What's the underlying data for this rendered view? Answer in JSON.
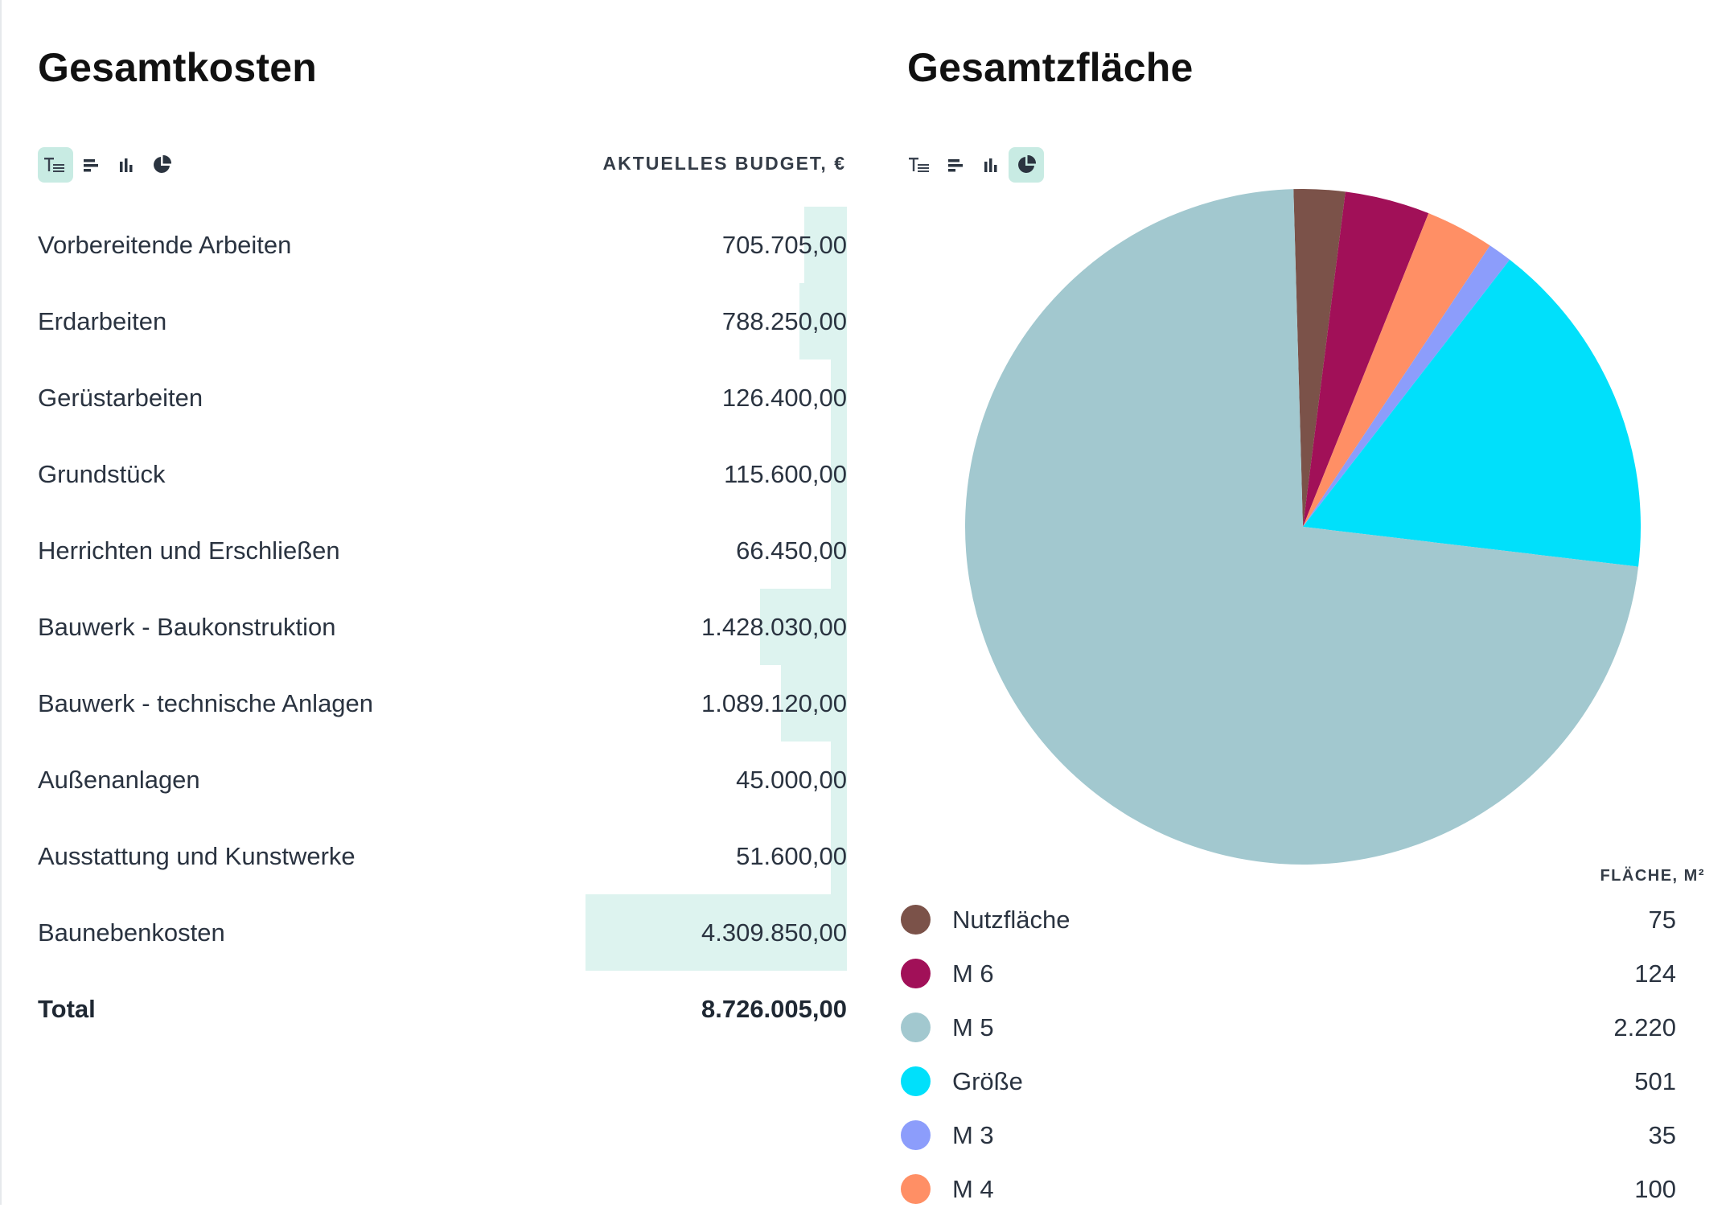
{
  "costs": {
    "title": "Gesamtkosten",
    "column_header": "AKTUELLES BUDGET, €",
    "active_view": "table",
    "views": [
      {
        "name": "table-view",
        "icon": "text-align-icon"
      },
      {
        "name": "bar-horizontal-view",
        "icon": "bar-horizontal-icon"
      },
      {
        "name": "bar-vertical-view",
        "icon": "bar-vertical-icon"
      },
      {
        "name": "pie-view",
        "icon": "pie-chart-icon"
      }
    ],
    "rows": [
      {
        "label": "Vorbereitende Arbeiten",
        "value": "705.705,00",
        "amount": 705705.0
      },
      {
        "label": "Erdarbeiten",
        "value": "788.250,00",
        "amount": 788250.0
      },
      {
        "label": "Gerüstarbeiten",
        "value": "126.400,00",
        "amount": 126400.0
      },
      {
        "label": "Grundstück",
        "value": "115.600,00",
        "amount": 115600.0
      },
      {
        "label": "Herrichten und Erschließen",
        "value": "66.450,00",
        "amount": 66450.0
      },
      {
        "label": "Bauwerk - Baukonstruktion",
        "value": "1.428.030,00",
        "amount": 1428030.0
      },
      {
        "label": "Bauwerk - technische Anlagen",
        "value": "1.089.120,00",
        "amount": 1089120.0
      },
      {
        "label": "Außenanlagen",
        "value": "45.000,00",
        "amount": 45000.0
      },
      {
        "label": "Ausstattung und Kunstwerke",
        "value": "51.600,00",
        "amount": 51600.0
      },
      {
        "label": "Baunebenkosten",
        "value": "4.309.850,00",
        "amount": 4309850.0
      }
    ],
    "total": {
      "label": "Total",
      "value": "8.726.005,00"
    },
    "bar_color": "#ddf3ef"
  },
  "area": {
    "title": "Gesamtzfläche",
    "active_view": "pie",
    "legend_header": "FLÄCHE, M²",
    "legend": [
      {
        "label": "Nutzfläche",
        "value": "75",
        "color": "#7b5249"
      },
      {
        "label": "M 6",
        "value": "124",
        "color": "#a11058"
      },
      {
        "label": "M 5",
        "value": "2.220",
        "color": "#a2c8cf"
      },
      {
        "label": "Größe",
        "value": "501",
        "color": "#00e0fb"
      },
      {
        "label": "M 3",
        "value": "35",
        "color": "#8c9dfb"
      },
      {
        "label": "M 4",
        "value": "100",
        "color": "#ff8f65"
      }
    ]
  },
  "chart_data": {
    "type": "pie",
    "title": "Gesamtzfläche",
    "labels": [
      "Nutzfläche",
      "M 6",
      "M 4",
      "M 3",
      "Größe",
      "M 5"
    ],
    "values": [
      75,
      124,
      100,
      35,
      501,
      2220
    ],
    "colors": [
      "#7b5249",
      "#a11058",
      "#ff8f65",
      "#8c9dfb",
      "#00e0fb",
      "#a2c8cf"
    ]
  }
}
